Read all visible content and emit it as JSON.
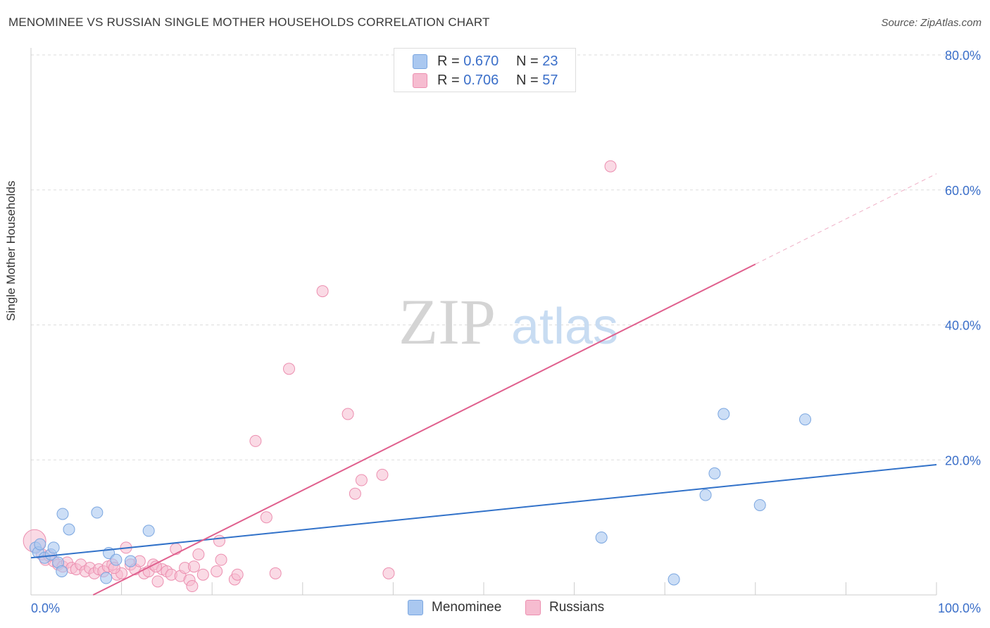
{
  "title": "MENOMINEE VS RUSSIAN SINGLE MOTHER HOUSEHOLDS CORRELATION CHART",
  "source": "Source: ZipAtlas.com",
  "watermark": {
    "zip": "ZIP",
    "atlas": "atlas"
  },
  "legend": {
    "menominee": {
      "r_label": "R = ",
      "r_value": "0.670",
      "n_label": "N = ",
      "n_value": "23"
    },
    "russians": {
      "r_label": "R = ",
      "r_value": "0.706",
      "n_label": "N = ",
      "n_value": "57"
    }
  },
  "colors": {
    "menominee_fill": "#aac8f0",
    "menominee_stroke": "#7aa6e0",
    "menominee_line": "#3272c9",
    "russians_fill": "#f6bcd0",
    "russians_stroke": "#ec8fb0",
    "russians_line": "#e0608e",
    "tick_label": "#3b6fc9",
    "grid": "#dddddd"
  },
  "chart_data": {
    "type": "scatter",
    "title": "MENOMINEE VS RUSSIAN SINGLE MOTHER HOUSEHOLDS CORRELATION CHART",
    "xlabel": "",
    "ylabel": "Single Mother Households",
    "xlim": [
      0,
      100
    ],
    "ylim": [
      0,
      80
    ],
    "x_tick_labels": [
      {
        "value": 0,
        "label": "0.0%"
      },
      {
        "value": 100,
        "label": "100.0%"
      }
    ],
    "y_tick_labels": [
      {
        "value": 20,
        "label": "20.0%"
      },
      {
        "value": 40,
        "label": "40.0%"
      },
      {
        "value": 60,
        "label": "60.0%"
      },
      {
        "value": 80,
        "label": "80.0%"
      }
    ],
    "series": [
      {
        "name": "Menominee",
        "r": 0.67,
        "n": 23,
        "trend": {
          "x0": 0,
          "y0": 5.5,
          "x1": 100,
          "y1": 19.3
        },
        "points": [
          {
            "x": 0.5,
            "y": 7.0
          },
          {
            "x": 0.8,
            "y": 6.3
          },
          {
            "x": 1.0,
            "y": 7.5
          },
          {
            "x": 1.5,
            "y": 5.5
          },
          {
            "x": 2.2,
            "y": 6.0
          },
          {
            "x": 2.5,
            "y": 7.0
          },
          {
            "x": 3.0,
            "y": 4.8
          },
          {
            "x": 3.4,
            "y": 3.5
          },
          {
            "x": 3.5,
            "y": 12.0
          },
          {
            "x": 4.2,
            "y": 9.7
          },
          {
            "x": 7.3,
            "y": 12.2
          },
          {
            "x": 8.3,
            "y": 2.5
          },
          {
            "x": 8.6,
            "y": 6.2
          },
          {
            "x": 9.4,
            "y": 5.2
          },
          {
            "x": 11.0,
            "y": 5.0
          },
          {
            "x": 13.0,
            "y": 9.5
          },
          {
            "x": 63.0,
            "y": 8.5
          },
          {
            "x": 71.0,
            "y": 2.3
          },
          {
            "x": 74.5,
            "y": 14.8
          },
          {
            "x": 75.5,
            "y": 18.0
          },
          {
            "x": 76.5,
            "y": 26.8
          },
          {
            "x": 80.5,
            "y": 13.3
          },
          {
            "x": 85.5,
            "y": 26.0
          }
        ]
      },
      {
        "name": "Russians",
        "r": 0.706,
        "n": 57,
        "trend": {
          "x0": 0,
          "y0": -4.6,
          "x1": 80,
          "y1": 49.0
        },
        "trend_dashed": {
          "x0": 80,
          "y0": 49.0,
          "x1": 100,
          "y1": 62.4
        },
        "points": [
          {
            "x": 0.4,
            "y": 8.0
          },
          {
            "x": 1.2,
            "y": 6.0
          },
          {
            "x": 1.6,
            "y": 5.2
          },
          {
            "x": 2.5,
            "y": 5.0
          },
          {
            "x": 3.0,
            "y": 4.5
          },
          {
            "x": 3.5,
            "y": 4.2
          },
          {
            "x": 4.0,
            "y": 4.8
          },
          {
            "x": 4.5,
            "y": 4.0
          },
          {
            "x": 5.0,
            "y": 3.8
          },
          {
            "x": 5.5,
            "y": 4.5
          },
          {
            "x": 6.0,
            "y": 3.5
          },
          {
            "x": 6.5,
            "y": 4.0
          },
          {
            "x": 7.0,
            "y": 3.2
          },
          {
            "x": 7.5,
            "y": 3.8
          },
          {
            "x": 8.0,
            "y": 3.5
          },
          {
            "x": 8.5,
            "y": 4.2
          },
          {
            "x": 9.0,
            "y": 4.5
          },
          {
            "x": 9.5,
            "y": 3.0
          },
          {
            "x": 10.0,
            "y": 3.2
          },
          {
            "x": 10.5,
            "y": 7.0
          },
          {
            "x": 11.0,
            "y": 4.5
          },
          {
            "x": 11.5,
            "y": 3.8
          },
          {
            "x": 12.0,
            "y": 5.0
          },
          {
            "x": 12.5,
            "y": 3.2
          },
          {
            "x": 13.0,
            "y": 3.5
          },
          {
            "x": 13.5,
            "y": 4.5
          },
          {
            "x": 14.0,
            "y": 2.0
          },
          {
            "x": 14.5,
            "y": 3.8
          },
          {
            "x": 15.0,
            "y": 3.5
          },
          {
            "x": 15.5,
            "y": 3.0
          },
          {
            "x": 16.0,
            "y": 6.8
          },
          {
            "x": 16.5,
            "y": 2.8
          },
          {
            "x": 17.0,
            "y": 4.0
          },
          {
            "x": 17.5,
            "y": 2.2
          },
          {
            "x": 17.8,
            "y": 1.3
          },
          {
            "x": 18.0,
            "y": 4.2
          },
          {
            "x": 18.5,
            "y": 6.0
          },
          {
            "x": 19.0,
            "y": 3.0
          },
          {
            "x": 20.5,
            "y": 3.5
          },
          {
            "x": 20.8,
            "y": 8.0
          },
          {
            "x": 21.0,
            "y": 5.2
          },
          {
            "x": 22.5,
            "y": 2.3
          },
          {
            "x": 22.8,
            "y": 3.0
          },
          {
            "x": 24.8,
            "y": 22.8
          },
          {
            "x": 26.0,
            "y": 11.5
          },
          {
            "x": 27.0,
            "y": 3.2
          },
          {
            "x": 28.5,
            "y": 33.5
          },
          {
            "x": 32.2,
            "y": 45.0
          },
          {
            "x": 35.0,
            "y": 26.8
          },
          {
            "x": 35.8,
            "y": 15.0
          },
          {
            "x": 36.5,
            "y": 17.0
          },
          {
            "x": 38.8,
            "y": 17.8
          },
          {
            "x": 39.5,
            "y": 3.2
          },
          {
            "x": 64.0,
            "y": 63.5
          },
          {
            "x": 2.0,
            "y": 5.8
          },
          {
            "x": 9.2,
            "y": 4.0
          },
          {
            "x": 13.8,
            "y": 4.2
          }
        ]
      }
    ]
  },
  "bottom_legend": {
    "menominee": "Menominee",
    "russians": "Russians"
  }
}
